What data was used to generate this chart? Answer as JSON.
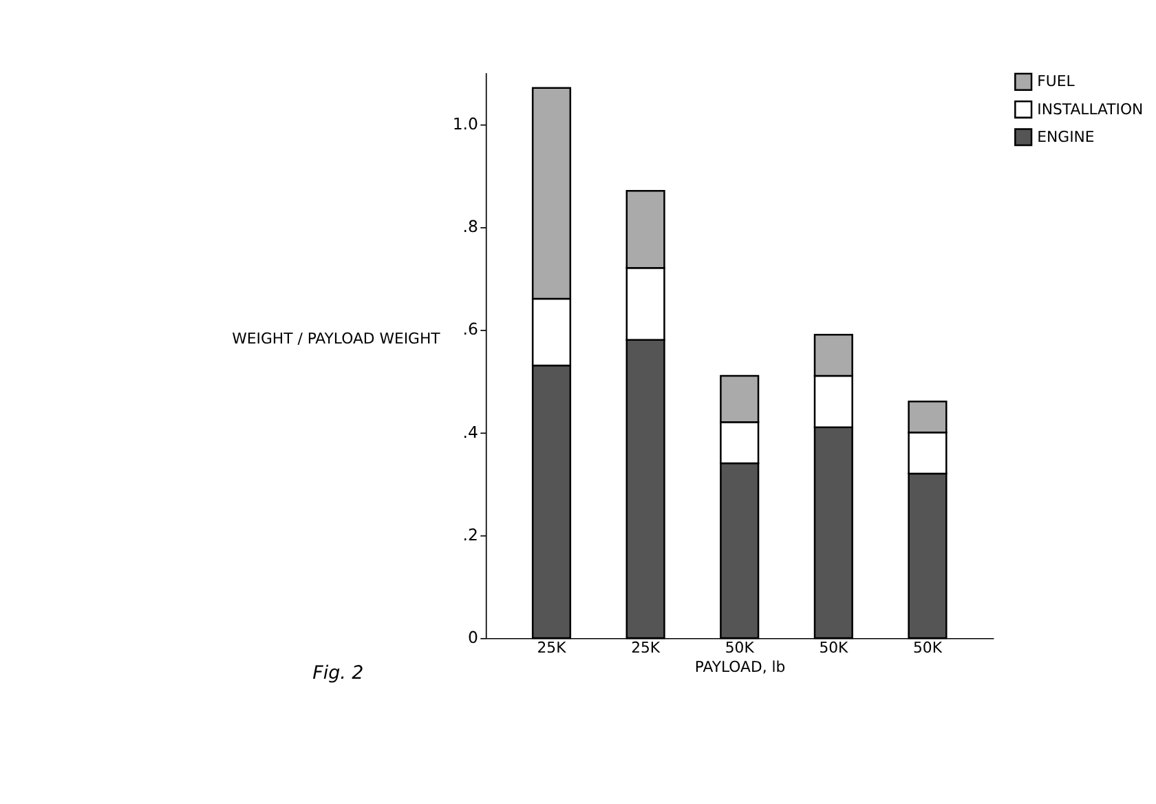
{
  "chart_data": {
    "type": "bar",
    "stacked": true,
    "xlabel": "PAYLOAD, lb",
    "ylabel": "WEIGHT / PAYLOAD WEIGHT",
    "categories": [
      "25K",
      "25K",
      "50K",
      "50K",
      "50K"
    ],
    "series": [
      {
        "name": "ENGINE",
        "color": "#555555",
        "values": [
          0.53,
          0.58,
          0.34,
          0.41,
          0.32
        ]
      },
      {
        "name": "INSTALLATION",
        "color": "#ffffff",
        "values": [
          0.13,
          0.14,
          0.08,
          0.1,
          0.08
        ]
      },
      {
        "name": "FUEL",
        "color": "#aaaaaa",
        "values": [
          0.41,
          0.15,
          0.09,
          0.08,
          0.06
        ]
      }
    ],
    "ylim": [
      0,
      1.1
    ],
    "yticks": [
      0,
      {
        "value": 0.2,
        "label": ".2"
      },
      {
        "value": 0.4,
        "label": ".4"
      },
      {
        "value": 0.6,
        "label": ".6"
      },
      {
        "value": 0.8,
        "label": ".8"
      },
      {
        "value": 1.0,
        "label": "1.0"
      }
    ],
    "grid": false,
    "legend": "right",
    "annotations": [
      "Fig. 2"
    ]
  }
}
